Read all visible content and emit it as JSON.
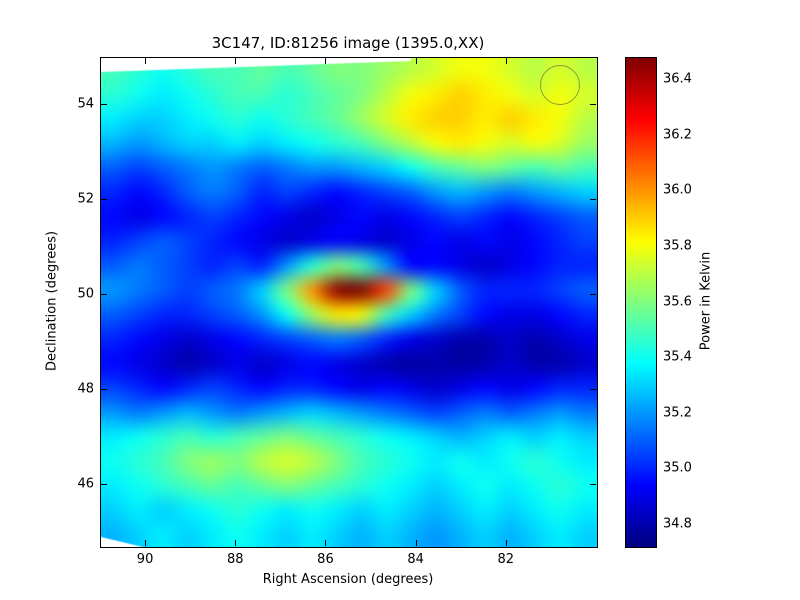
{
  "figure": {
    "title": "3C147, ID:81256 image (1395.0,XX)",
    "xlabel": "Right Ascension (degrees)",
    "ylabel": "Declination (degrees)",
    "colorbar_label": "Power in Kelvin"
  },
  "chart_data": {
    "type": "heatmap",
    "title": "3C147, ID:81256 image (1395.0,XX)",
    "xlabel": "Right Ascension (degrees)",
    "ylabel": "Declination (degrees)",
    "colormap": "jet",
    "x_axis": {
      "ticks": [
        90,
        88,
        86,
        84,
        82
      ],
      "range": [
        91.0,
        80.0
      ],
      "reversed": true
    },
    "y_axis": {
      "ticks": [
        46,
        48,
        50,
        52,
        54
      ],
      "range": [
        44.7,
        55.0
      ]
    },
    "colorbar": {
      "label": "Power in Kelvin",
      "ticks": [
        34.8,
        35.0,
        35.2,
        35.4,
        35.6,
        35.8,
        36.0,
        36.2,
        36.4
      ],
      "vmin": 34.72,
      "vmax": 36.48
    },
    "hotspot": {
      "ra": 85.4,
      "dec": 49.9,
      "peak_value": 36.55
    },
    "annotations": [
      {
        "type": "circle",
        "ra": 80.85,
        "dec": 54.45,
        "radius_deg": 0.4,
        "color": "#8f9a33"
      }
    ],
    "grid": {
      "cols_ra": [
        90.725,
        80.275
      ],
      "rows_dec": [
        54.74,
        44.96
      ],
      "values": [
        [
          35.5,
          35.45,
          35.4,
          35.45,
          35.5,
          35.5,
          35.55,
          35.5,
          35.55,
          35.6,
          35.6,
          35.65,
          35.7,
          35.75,
          35.8,
          35.8,
          35.75,
          35.7,
          35.75,
          35.7
        ],
        [
          35.45,
          35.4,
          35.35,
          35.4,
          35.45,
          35.5,
          35.5,
          35.45,
          35.5,
          35.55,
          35.6,
          35.7,
          35.8,
          35.85,
          35.9,
          35.85,
          35.8,
          35.75,
          35.8,
          35.75
        ],
        [
          35.35,
          35.3,
          35.3,
          35.35,
          35.4,
          35.45,
          35.4,
          35.45,
          35.5,
          35.55,
          35.65,
          35.75,
          35.85,
          35.9,
          35.9,
          35.85,
          35.9,
          35.85,
          35.8,
          35.7
        ],
        [
          35.25,
          35.2,
          35.25,
          35.3,
          35.3,
          35.35,
          35.3,
          35.35,
          35.4,
          35.45,
          35.5,
          35.6,
          35.7,
          35.8,
          35.85,
          35.8,
          35.75,
          35.8,
          35.75,
          35.65
        ],
        [
          35.1,
          35.05,
          35.1,
          35.15,
          35.2,
          35.15,
          35.1,
          35.15,
          35.2,
          35.2,
          35.25,
          35.3,
          35.4,
          35.5,
          35.55,
          35.6,
          35.55,
          35.5,
          35.55,
          35.5
        ],
        [
          35.0,
          34.95,
          35.0,
          35.1,
          35.15,
          35.1,
          35.0,
          35.05,
          35.0,
          34.95,
          35.0,
          35.05,
          35.1,
          35.2,
          35.25,
          35.2,
          35.15,
          35.2,
          35.25,
          35.3
        ],
        [
          34.95,
          34.9,
          34.95,
          35.0,
          35.05,
          35.0,
          34.95,
          34.9,
          34.85,
          34.9,
          34.95,
          34.9,
          34.95,
          35.0,
          35.05,
          35.0,
          34.95,
          35.0,
          35.05,
          35.1
        ],
        [
          35.0,
          35.05,
          35.1,
          35.05,
          35.0,
          34.95,
          34.9,
          34.85,
          34.9,
          34.95,
          34.9,
          34.85,
          34.9,
          34.95,
          34.9,
          34.95,
          34.9,
          34.95,
          35.0,
          35.05
        ],
        [
          35.1,
          35.15,
          35.1,
          35.05,
          35.0,
          35.05,
          35.0,
          35.2,
          35.45,
          35.6,
          35.5,
          35.2,
          34.95,
          34.95,
          34.9,
          34.85,
          34.9,
          34.95,
          35.0,
          35.0
        ],
        [
          35.2,
          35.15,
          35.1,
          35.05,
          35.1,
          35.15,
          35.3,
          35.6,
          36.0,
          36.45,
          36.55,
          36.15,
          35.6,
          35.3,
          35.1,
          35.0,
          35.0,
          35.0,
          35.05,
          35.1
        ],
        [
          35.1,
          35.05,
          35.0,
          35.0,
          35.05,
          35.1,
          35.2,
          35.4,
          35.65,
          35.85,
          35.8,
          35.5,
          35.3,
          35.15,
          35.05,
          34.95,
          34.9,
          34.9,
          34.95,
          35.0
        ],
        [
          35.0,
          34.95,
          34.9,
          34.85,
          34.9,
          34.95,
          35.0,
          35.05,
          35.1,
          35.15,
          35.1,
          35.0,
          34.9,
          34.85,
          34.8,
          34.8,
          34.85,
          34.8,
          34.85,
          34.9
        ],
        [
          34.95,
          34.9,
          34.85,
          34.8,
          34.85,
          34.9,
          34.85,
          34.9,
          34.95,
          34.9,
          34.85,
          34.8,
          34.78,
          34.8,
          34.78,
          34.8,
          34.85,
          34.8,
          34.8,
          34.85
        ],
        [
          35.05,
          35.0,
          34.95,
          35.0,
          35.05,
          35.0,
          34.95,
          35.0,
          35.0,
          34.95,
          34.9,
          34.95,
          34.9,
          34.85,
          34.9,
          34.95,
          34.9,
          34.95,
          35.0,
          35.0
        ],
        [
          35.2,
          35.15,
          35.2,
          35.25,
          35.2,
          35.15,
          35.2,
          35.25,
          35.3,
          35.25,
          35.2,
          35.15,
          35.1,
          35.05,
          35.1,
          35.15,
          35.1,
          35.15,
          35.2,
          35.15
        ],
        [
          35.35,
          35.4,
          35.45,
          35.5,
          35.45,
          35.5,
          35.55,
          35.6,
          35.55,
          35.5,
          35.45,
          35.4,
          35.35,
          35.3,
          35.25,
          35.3,
          35.35,
          35.3,
          35.35,
          35.3
        ],
        [
          35.4,
          35.45,
          35.5,
          35.6,
          35.65,
          35.6,
          35.7,
          35.75,
          35.7,
          35.6,
          35.5,
          35.45,
          35.4,
          35.35,
          35.4,
          35.35,
          35.4,
          35.45,
          35.4,
          35.35
        ],
        [
          35.35,
          35.4,
          35.45,
          35.5,
          35.55,
          35.5,
          35.55,
          35.6,
          35.55,
          35.5,
          35.45,
          35.4,
          35.35,
          35.3,
          35.35,
          35.4,
          35.35,
          35.4,
          35.45,
          35.4
        ],
        [
          35.3,
          35.35,
          35.3,
          35.35,
          35.4,
          35.45,
          35.4,
          35.35,
          35.4,
          35.35,
          35.3,
          35.35,
          35.3,
          35.25,
          35.3,
          35.35,
          35.3,
          35.35,
          35.4,
          35.35
        ],
        [
          35.25,
          35.3,
          35.35,
          35.3,
          35.35,
          35.4,
          35.35,
          35.3,
          35.35,
          35.3,
          35.25,
          35.3,
          35.25,
          35.2,
          35.25,
          35.3,
          35.25,
          35.3,
          35.35,
          35.3
        ]
      ]
    }
  }
}
